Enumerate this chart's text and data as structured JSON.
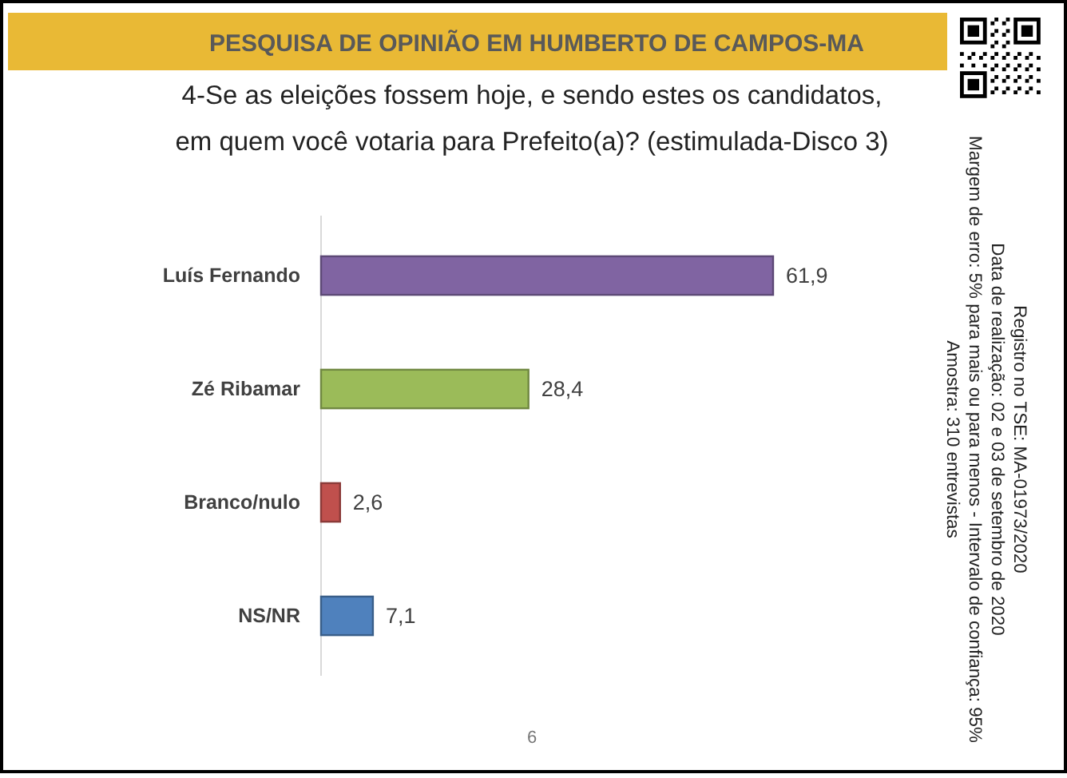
{
  "chart_data": {
    "type": "bar",
    "orientation": "horizontal",
    "title": "PESQUISA DE OPINIÃO EM HUMBERTO DE CAMPOS-MA",
    "subtitle": "4-Se as eleições fossem hoje, e sendo estes os candidatos, em quem você votaria para Prefeito(a)? (estimulada-Disco 3)",
    "categories": [
      "Luís Fernando",
      "Zé Ribamar",
      "Branco/nulo",
      "NS/NR"
    ],
    "values": [
      61.9,
      28.4,
      2.6,
      7.1
    ],
    "colors": [
      "#8064a2",
      "#9bbb59",
      "#c0504d",
      "#4f81bd"
    ],
    "value_labels": [
      "61,9",
      "28,4",
      "2,6",
      "7,1"
    ],
    "annotations": [
      "Registro no TSE: MA-01973/2020",
      "Data de realização: 02 e 03 de setembro de 2020",
      "Margem de erro: 5% para mais ou para menos - Intervalo de confiança: 95%",
      "Amostra: 310 entrevistas",
      "6"
    ]
  }
}
